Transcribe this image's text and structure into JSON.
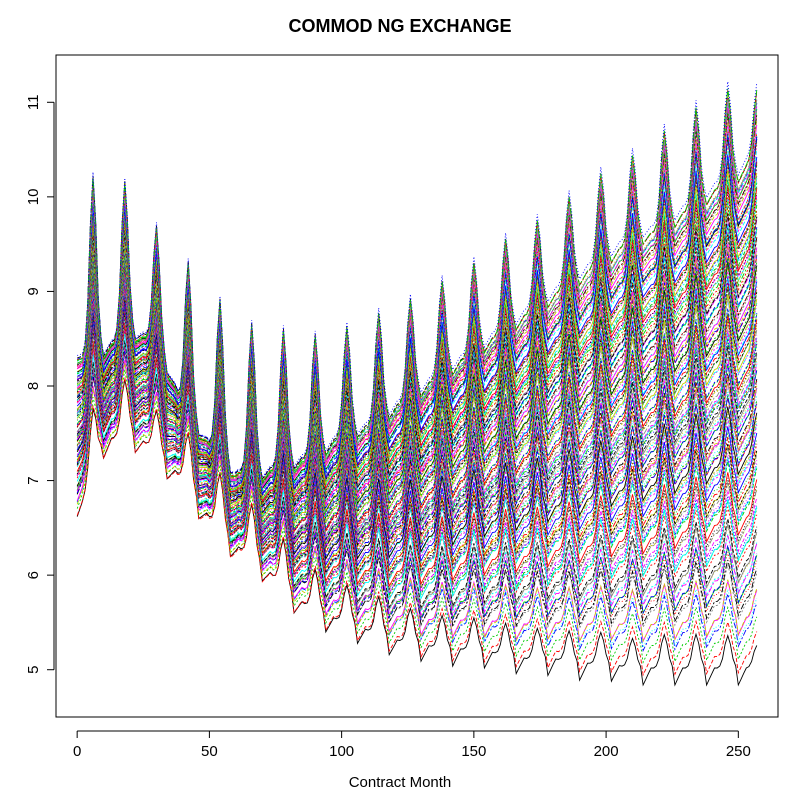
{
  "chart_data": {
    "type": "line",
    "title": "COMMOD NG EXCHANGE",
    "xlabel": "Contract Month",
    "ylabel": "",
    "xlim": [
      -8,
      265
    ],
    "ylim": [
      4.5,
      11.5
    ],
    "x_ticks": [
      0,
      50,
      100,
      150,
      200,
      250
    ],
    "y_ticks": [
      5,
      6,
      7,
      8,
      9,
      10,
      11
    ],
    "x_max": 257,
    "num_curves": 140,
    "grid": false,
    "legend": "none",
    "envelope": {
      "x": [
        0,
        10,
        20,
        30,
        40,
        50,
        60,
        70,
        80,
        90,
        100,
        110,
        120,
        130,
        140,
        150,
        160,
        170,
        180,
        190,
        200,
        210,
        220,
        230,
        240,
        250,
        257
      ],
      "upper_base": [
        8.3,
        8.4,
        8.6,
        8.5,
        7.8,
        7.4,
        7.1,
        7.1,
        7.2,
        7.3,
        7.5,
        7.6,
        7.8,
        8.0,
        8.2,
        8.4,
        8.6,
        8.8,
        9.0,
        9.2,
        9.4,
        9.6,
        9.7,
        9.9,
        10.1,
        10.3,
        10.5
      ],
      "lower_base": [
        6.6,
        7.4,
        7.5,
        7.3,
        7.0,
        6.6,
        6.3,
        6.1,
        5.8,
        5.6,
        5.5,
        5.4,
        5.3,
        5.25,
        5.2,
        5.2,
        5.15,
        5.1,
        5.1,
        5.05,
        5.05,
        5.0,
        5.0,
        5.0,
        5.0,
        5.0,
        5.0
      ]
    },
    "peaks": {
      "x": [
        6,
        18,
        30,
        42,
        54,
        66,
        78,
        90,
        102,
        114,
        126,
        138,
        150,
        162,
        174,
        186,
        198,
        210,
        222,
        234,
        246,
        257
      ],
      "upper_peak": [
        10.15,
        10.1,
        9.65,
        9.25,
        8.85,
        8.6,
        8.55,
        8.5,
        8.6,
        8.75,
        8.9,
        9.1,
        9.3,
        9.55,
        9.75,
        10.0,
        10.25,
        10.45,
        10.7,
        10.95,
        11.15,
        11.15
      ]
    },
    "series_colors": [
      "#000000",
      "#ff0000",
      "#00cd00",
      "#0000ff",
      "#00ffff",
      "#ff00ff",
      "#cccc00",
      "#888888"
    ]
  }
}
